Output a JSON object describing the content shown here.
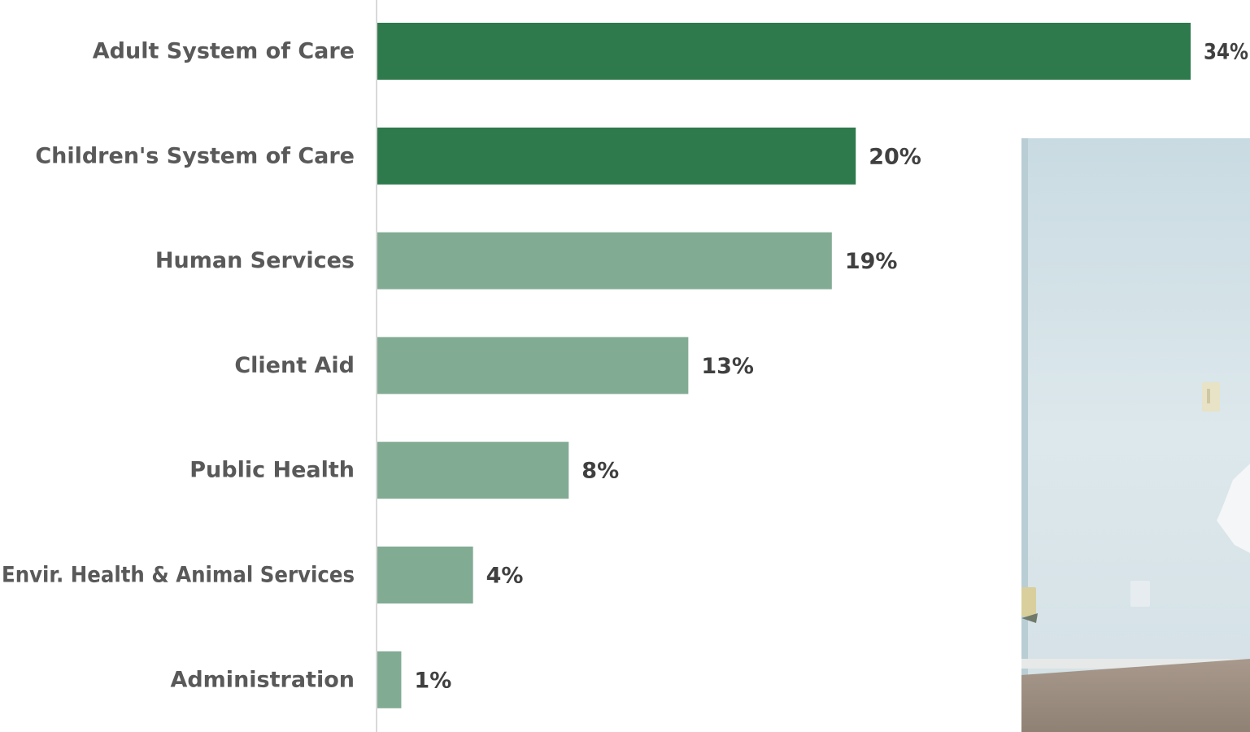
{
  "chart_data": {
    "type": "bar",
    "orientation": "horizontal",
    "categories": [
      "Adult System of Care",
      "Children's System of Care",
      "Human Services",
      "Client Aid",
      "Public Health",
      "Envir. Health & Animal Services",
      "Administration"
    ],
    "values": [
      34,
      20,
      19,
      13,
      8,
      4,
      1
    ],
    "value_labels": [
      "34%",
      "20%",
      "19%",
      "13%",
      "8%",
      "4%",
      "1%"
    ],
    "unit": "%",
    "xlim": [
      0,
      34
    ],
    "grid": false,
    "legend": "none",
    "colors": {
      "highlight": "#2e7a4c",
      "normal": "#82ab94",
      "axis": "#d9d9d9"
    },
    "highlighted_categories": [
      "Adult System of Care",
      "Children's System of Care"
    ]
  }
}
